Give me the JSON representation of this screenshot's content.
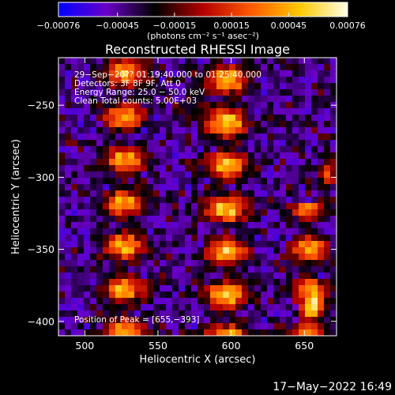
{
  "chart_data": {
    "type": "heatmap",
    "title": "Reconstructed RHESSI Image",
    "xlabel": "Heliocentric X (arcsec)",
    "ylabel": "Heliocentric Y (arcsec)",
    "xlim": [
      482,
      672
    ],
    "ylim": [
      -410,
      -217
    ],
    "x_ticks": [
      {
        "value": 500,
        "label": "500"
      },
      {
        "value": 550,
        "label": "550"
      },
      {
        "value": 600,
        "label": "600"
      },
      {
        "value": 650,
        "label": "650"
      }
    ],
    "y_ticks": [
      {
        "value": -250,
        "label": "−250"
      },
      {
        "value": -300,
        "label": "−300"
      },
      {
        "value": -350,
        "label": "−350"
      },
      {
        "value": -400,
        "label": "−400"
      }
    ],
    "colorbar": {
      "min": -0.00076,
      "max": 0.00076,
      "units": "(photons cm⁻² s⁻¹ asec⁻²)",
      "colors": [
        "#0000ff",
        "#6a00c8",
        "#000000",
        "#b40000",
        "#ff5a00",
        "#ffc800",
        "#ffffe6"
      ],
      "ticks": [
        {
          "value": -0.00076,
          "label": "−0.00076"
        },
        {
          "value": -0.00045,
          "label": "−0.00045"
        },
        {
          "value": -0.00015,
          "label": "−0.00015"
        },
        {
          "value": 0.00015,
          "label": "0.00015"
        },
        {
          "value": 0.00045,
          "label": "0.00045"
        },
        {
          "value": 0.00076,
          "label": "0.00076"
        }
      ]
    },
    "annotations": [
      "29−Sep−20?? 01:19:40.000 to 01:25:40.000",
      "Detectors: 3F 8F 9F, Att 0",
      "Energy Range: 25.0 − 50.0 keV",
      "Clean     Total counts: 5.00E+03"
    ],
    "peak_label": "Position of Peak = [655,−393]",
    "bright_bands": [
      {
        "x_center": 527,
        "width": 14,
        "y_from": -410,
        "y_to": -217,
        "peak": 0.75
      },
      {
        "x_center": 597,
        "width": 14,
        "y_from": -410,
        "y_to": -217,
        "peak": 0.85
      },
      {
        "x_center": 653,
        "width": 12,
        "y_from": -410,
        "y_to": -320,
        "peak": 0.75
      },
      {
        "x_center": 667,
        "width": 6,
        "y_from": -320,
        "y_to": -270,
        "peak": 0.5
      },
      {
        "x_center": 655,
        "width": 8,
        "y_from": -405,
        "y_to": -380,
        "peak": 1.0
      }
    ]
  },
  "footer": {
    "timestamp": "17−May−2022 16:49"
  }
}
